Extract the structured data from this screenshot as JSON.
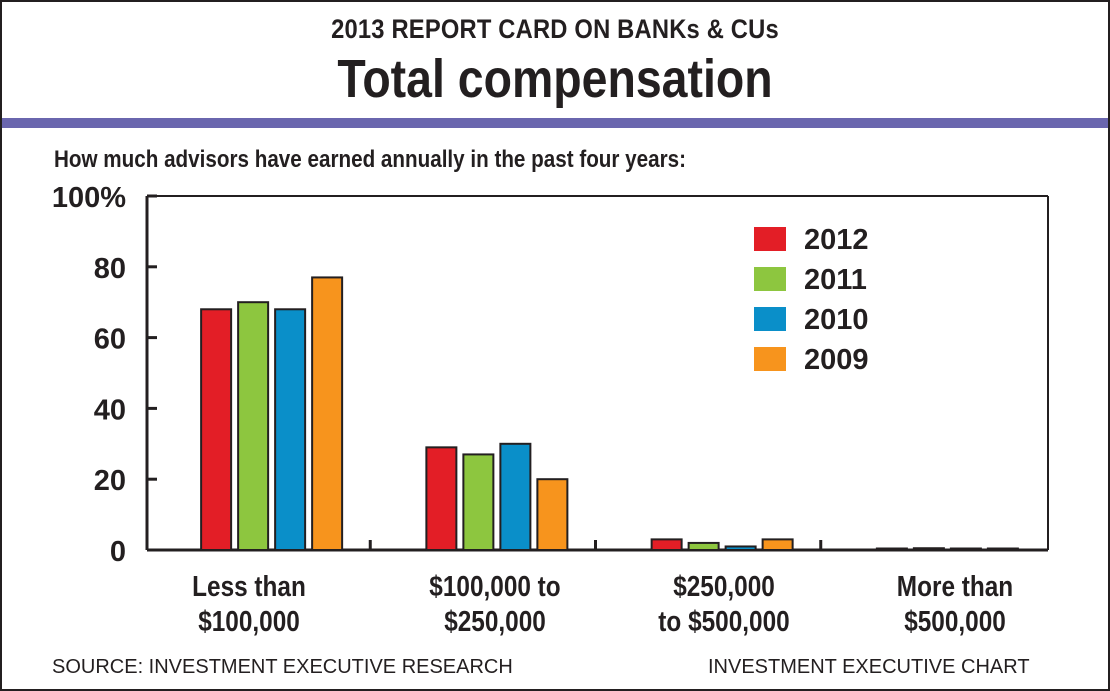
{
  "header": {
    "title": "2013 REPORT CARD ON BANKs & CUs",
    "main_title": "Total compensation",
    "accent_color": "#6a66ae"
  },
  "footer": {
    "source": "SOURCE: INVESTMENT EXECUTIVE RESEARCH",
    "credit": "INVESTMENT EXECUTIVE CHART"
  },
  "chart_data": {
    "type": "bar",
    "title": "How much advisors have earned annually in the past four years:",
    "categories": [
      "Less than\n$100,000",
      "$100,000 to\n$250,000",
      "$250,000\nto $500,000",
      "More than\n$500,000"
    ],
    "series": [
      {
        "name": "2012",
        "color": "#e31e26",
        "values": [
          68,
          29,
          3,
          0
        ]
      },
      {
        "name": "2011",
        "color": "#8dc63f",
        "values": [
          70,
          27,
          2,
          0.5
        ]
      },
      {
        "name": "2010",
        "color": "#0a8fc9",
        "values": [
          68,
          30,
          1,
          0
        ]
      },
      {
        "name": "2009",
        "color": "#f7941d",
        "values": [
          77,
          20,
          3,
          0
        ]
      }
    ],
    "ylim": [
      0,
      100
    ],
    "yticks": [
      0,
      20,
      40,
      60,
      80,
      100
    ],
    "ytick_labels": [
      "0",
      "20",
      "40",
      "60",
      "80",
      "100%"
    ],
    "xlabel": "",
    "ylabel": "",
    "legend_position": "top-right",
    "grid": false
  }
}
